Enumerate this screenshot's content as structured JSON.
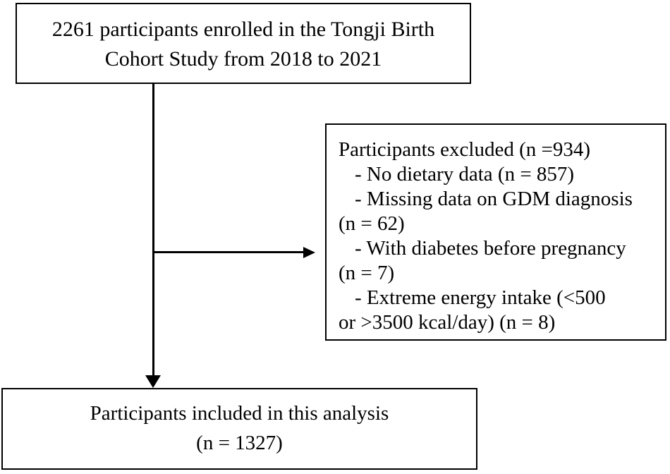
{
  "colors": {
    "border": "#000000",
    "text": "#000000",
    "background": "#ffffff"
  },
  "boxes": {
    "enrolled": {
      "lines": [
        "2261 participants enrolled in the Tongji Birth",
        "Cohort Study from 2018 to 2021"
      ]
    },
    "excluded": {
      "lines": [
        "Participants excluded (n =934)",
        "- No dietary data (n = 857)",
        "- Missing data on GDM diagnosis",
        "(n = 62)",
        "- With diabetes before pregnancy",
        "(n = 7)",
        "- Extreme energy intake (<500",
        "or >3500 kcal/day) (n = 8)"
      ]
    },
    "included": {
      "lines": [
        "Participants included in this analysis",
        "(n = 1327)"
      ]
    }
  }
}
